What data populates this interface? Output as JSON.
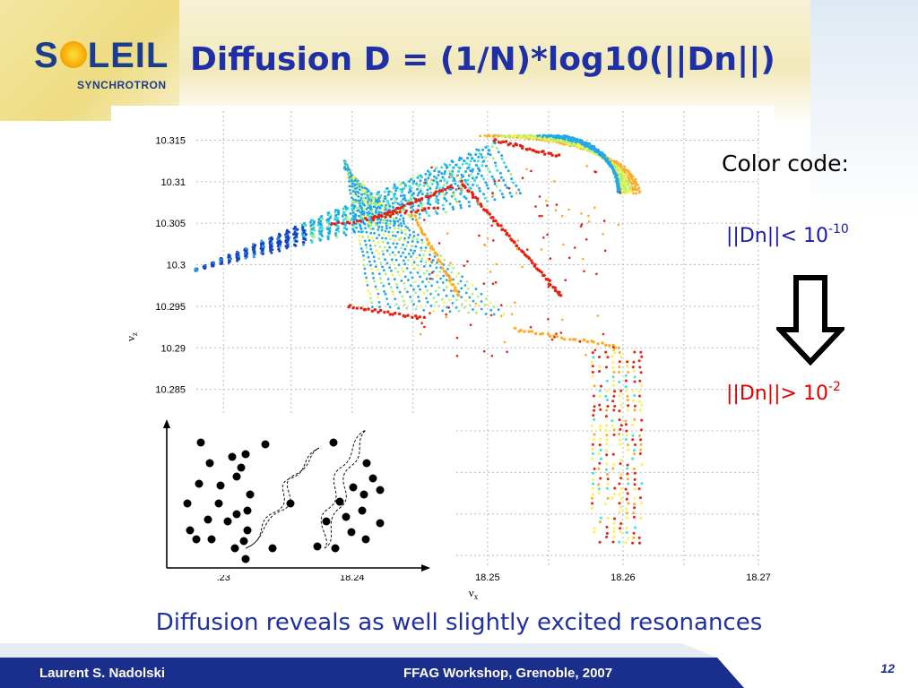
{
  "header": {
    "logo_word_left": "S",
    "logo_word_right": "LEIL",
    "logo_sub": "SYNCHROTRON",
    "title": "Diffusion D = (1/N)*log10(||Dn||)"
  },
  "legend": {
    "title": "Color code:",
    "low_text": "||Dn||< 10",
    "low_exp": "-10",
    "high_text": "||Dn||> 10",
    "high_exp": "-2",
    "low_color": "#1a1ab0",
    "high_color": "#e00000"
  },
  "caption": "Diffusion reveals as well slightly excited resonances",
  "footer": {
    "author": "Laurent S. Nadolski",
    "event": "FFAG Workshop, Grenoble, 2007",
    "page": "12",
    "band_color": "#1a2f8c"
  },
  "chart_data": {
    "type": "scatter",
    "x_tick_labels": [
      ".23",
      "18.24",
      "18.25",
      "18.26",
      "18.27"
    ],
    "y_tick_labels": [
      "10.315",
      "10.31",
      "10.305",
      "10.3",
      "10.295",
      "10.29",
      "10.285"
    ],
    "xlabel": "ν",
    "xlabel_sub": "x",
    "ylabel": "ν",
    "ylabel_sub": "z",
    "xlim": [
      18.2285,
      18.27
    ],
    "ylim": [
      10.2635,
      10.3185
    ],
    "grid": true,
    "color_scale": [
      "#1a3fc8",
      "#22a8e8",
      "#3ee0e0",
      "#a8f07a",
      "#fff04a",
      "#ffaa22",
      "#e82010"
    ],
    "inset": {
      "description_icon": "diffusion-schematic-icon"
    }
  }
}
